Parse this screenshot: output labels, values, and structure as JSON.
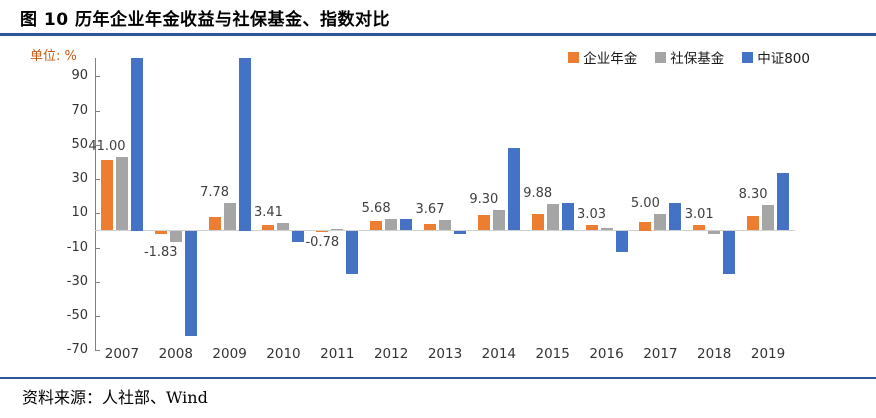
{
  "header": {
    "title": "图 10  历年企业年金收益与社保基金、指数对比"
  },
  "footer": {
    "source": "资料来源：人社部、Wind"
  },
  "chart": {
    "unit_label": "单位: %"
  },
  "colors": {
    "accent_rule": "#2E5596",
    "unit_label_text": "#C45911",
    "axis_line": "#808080",
    "zero_line": "#D0D0D0",
    "tick_text": "#333333",
    "data_label_text": "#3F3F3F"
  },
  "chart_data": {
    "type": "bar",
    "title": "历年企业年金收益与社保基金、指数对比",
    "unit": "%",
    "categories": [
      "2007",
      "2008",
      "2009",
      "2010",
      "2011",
      "2012",
      "2013",
      "2014",
      "2015",
      "2016",
      "2017",
      "2018",
      "2019"
    ],
    "series": [
      {
        "name": "企业年金",
        "key": "enterprise-annuity",
        "color": "#ED7D31",
        "values": [
          41.0,
          -1.83,
          7.78,
          3.41,
          -0.78,
          5.68,
          3.67,
          9.3,
          9.88,
          3.03,
          5.0,
          3.01,
          8.3
        ]
      },
      {
        "name": "社保基金",
        "key": "social-security-fund",
        "color": "#A5A5A5",
        "values": [
          43.2,
          -6.8,
          16.1,
          4.2,
          0.8,
          7.0,
          6.2,
          11.7,
          15.2,
          1.7,
          9.7,
          -2.3,
          14.9
        ]
      },
      {
        "name": "中证800",
        "key": "csi800",
        "color": "#4472C4",
        "values": [
          101,
          -61.5,
          101,
          -6.7,
          -25.5,
          6.5,
          -2.3,
          48.3,
          15.9,
          -12.6,
          15.9,
          -25.5,
          33.8
        ],
        "clipped_above_axis": [
          "2007",
          "2009"
        ]
      }
    ],
    "data_labels": {
      "series": "企业年金",
      "values": [
        "41.00",
        "-1.83",
        "7.78",
        "3.41",
        "-0.78",
        "5.68",
        "3.67",
        "9.30",
        "9.88",
        "3.03",
        "5.00",
        "3.01",
        "8.30"
      ]
    },
    "ylim": [
      -70,
      101
    ],
    "yticks": [
      90,
      70,
      50,
      30,
      10,
      -10,
      -30,
      -50,
      -70
    ],
    "legend_position": "top-right",
    "grid": false
  }
}
